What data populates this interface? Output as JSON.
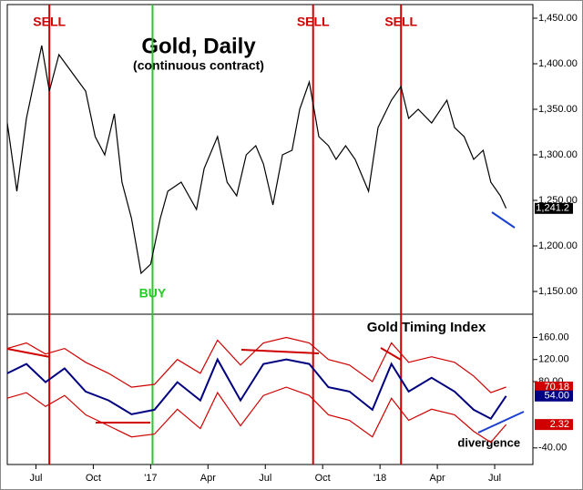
{
  "chart_data": [
    {
      "type": "line",
      "title": "Gold, Daily",
      "subtitle": "(continuous contract)",
      "x": [
        0,
        0.5,
        1.0,
        1.8,
        2.2,
        2.7,
        3.4,
        4.1,
        4.6,
        5.1,
        5.6,
        6.0,
        6.5,
        7.0,
        7.5,
        8.0,
        8.4,
        9.1,
        9.9,
        10.3,
        11.0,
        11.5,
        12.0,
        12.5,
        13.0,
        13.4,
        13.9,
        14.4,
        14.9,
        15.3,
        15.8,
        16.3,
        16.8,
        17.2,
        17.7,
        18.2,
        18.9,
        19.4,
        20.1,
        20.6,
        21.0,
        21.5,
        22.2,
        23.0,
        23.4,
        23.9,
        24.4,
        24.9,
        25.3,
        25.8,
        26.1
      ],
      "series": [
        {
          "color": "#000000",
          "values": [
            1335,
            1260,
            1340,
            1420,
            1370,
            1410,
            1390,
            1370,
            1320,
            1300,
            1345,
            1270,
            1230,
            1170,
            1180,
            1230,
            1260,
            1270,
            1240,
            1285,
            1320,
            1270,
            1255,
            1300,
            1310,
            1290,
            1245,
            1300,
            1305,
            1350,
            1380,
            1320,
            1310,
            1295,
            1310,
            1295,
            1260,
            1330,
            1360,
            1375,
            1340,
            1350,
            1335,
            1360,
            1330,
            1320,
            1295,
            1305,
            1270,
            1255,
            1241.2
          ],
          "value_labels": [
            null,
            null,
            null,
            null,
            null,
            null,
            null,
            null,
            null,
            null,
            null,
            null,
            null,
            null,
            null,
            null,
            null,
            null,
            null,
            null,
            null,
            null,
            null,
            null,
            null,
            null,
            null,
            null,
            null,
            null,
            null,
            null,
            null,
            null,
            null,
            null,
            null,
            null,
            null,
            null,
            null,
            null,
            null,
            null,
            null,
            null,
            null,
            null,
            null,
            null,
            "1,241.2"
          ]
        }
      ],
      "xlim": [
        0,
        27.5
      ],
      "ylim": [
        1125,
        1465
      ],
      "yticks": [
        {
          "value": 1450,
          "label": "1,450.00"
        },
        {
          "value": 1400,
          "label": "1,400.00"
        },
        {
          "value": 1350,
          "label": "1,350.00"
        },
        {
          "value": 1300,
          "label": "1,300.00"
        },
        {
          "value": 1250,
          "label": "1,250.00"
        },
        {
          "value": 1200,
          "label": "1,200.00"
        },
        {
          "value": 1150,
          "label": "1,150.00"
        }
      ],
      "annotations": [
        {
          "text": "SELL",
          "x": 2.2,
          "color": "#d00000",
          "label_at": "top"
        },
        {
          "text": "BUY",
          "x": 7.6,
          "color": "#22cc22",
          "label_at": "bottom"
        },
        {
          "text": "SELL",
          "x": 16.0,
          "color": "#d00000",
          "label_at": "top"
        },
        {
          "text": "SELL",
          "x": 20.6,
          "color": "#d00000",
          "label_at": "top"
        }
      ]
    },
    {
      "type": "line",
      "title": "Gold Timing Index",
      "x": [
        0,
        1.0,
        2.0,
        3.0,
        4.1,
        5.3,
        6.5,
        7.7,
        8.9,
        10.1,
        11.0,
        12.2,
        13.4,
        14.6,
        15.8,
        16.8,
        17.9,
        19.1,
        20.1,
        21.0,
        22.2,
        23.4,
        24.4,
        25.3,
        26.1
      ],
      "series": [
        {
          "color": "#d00000",
          "values": [
            140,
            150,
            130,
            140,
            115,
            95,
            70,
            75,
            120,
            95,
            155,
            110,
            150,
            160,
            150,
            120,
            110,
            80,
            150,
            115,
            125,
            115,
            90,
            60,
            70.18
          ],
          "value_labels": [
            null,
            null,
            null,
            null,
            null,
            null,
            null,
            null,
            null,
            null,
            null,
            null,
            null,
            null,
            null,
            null,
            null,
            null,
            null,
            null,
            null,
            null,
            null,
            null,
            "70.18"
          ]
        },
        {
          "color": "#000080",
          "values": [
            95,
            112,
            79,
            104,
            62,
            46,
            21,
            29,
            79,
            46,
            120,
            46,
            112,
            120,
            112,
            70,
            62,
            29,
            112,
            62,
            87,
            62,
            29,
            13,
            54
          ],
          "value_labels": [
            null,
            null,
            null,
            null,
            null,
            null,
            null,
            null,
            null,
            null,
            null,
            null,
            null,
            null,
            null,
            null,
            null,
            null,
            null,
            null,
            null,
            null,
            null,
            null,
            "54.00"
          ]
        },
        {
          "color": "#d00000",
          "values": [
            50,
            60,
            35,
            55,
            20,
            0,
            -20,
            -15,
            30,
            -5,
            60,
            0,
            55,
            70,
            55,
            20,
            10,
            -20,
            50,
            10,
            30,
            20,
            -10,
            -30,
            2.32
          ],
          "value_labels": [
            null,
            null,
            null,
            null,
            null,
            null,
            null,
            null,
            null,
            null,
            null,
            null,
            null,
            null,
            null,
            null,
            null,
            null,
            null,
            null,
            null,
            null,
            null,
            null,
            "2.32"
          ]
        }
      ],
      "xlim": [
        0,
        27.5
      ],
      "ylim": [
        -70,
        202
      ],
      "xticks": [
        {
          "value": 1.5,
          "label": "Jul"
        },
        {
          "value": 4.5,
          "label": "Oct"
        },
        {
          "value": 7.5,
          "label": "'17"
        },
        {
          "value": 10.5,
          "label": "Apr"
        },
        {
          "value": 13.5,
          "label": "Jul"
        },
        {
          "value": 16.5,
          "label": "Oct"
        },
        {
          "value": 19.5,
          "label": "'18"
        },
        {
          "value": 22.5,
          "label": "Apr"
        },
        {
          "value": 25.5,
          "label": "Jul"
        }
      ],
      "yticks": [
        {
          "value": 160,
          "label": "160.00"
        },
        {
          "value": 120,
          "label": "120.00"
        },
        {
          "value": 80,
          "label": "80.00"
        },
        {
          "value": -40,
          "label": "-40.00"
        }
      ],
      "annotations": [
        {
          "text": "divergence",
          "x": 25.2,
          "y": -32,
          "color": "#000000"
        }
      ]
    }
  ]
}
